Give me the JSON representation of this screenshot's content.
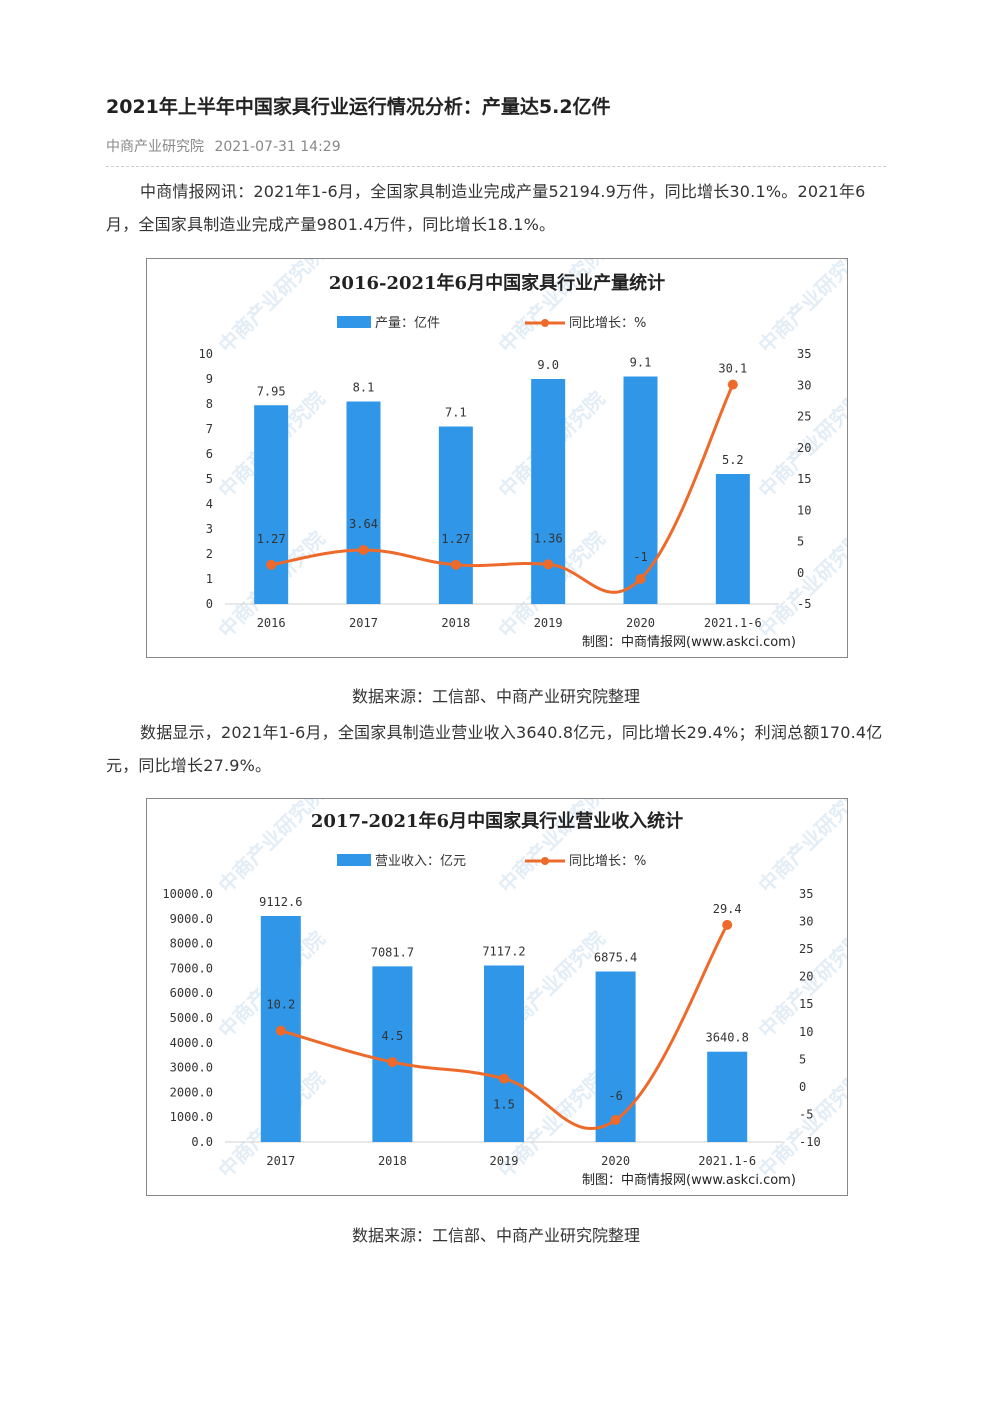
{
  "article": {
    "title": "2021年上半年中国家具行业运行情况分析：产量达5.2亿件",
    "source": "中商产业研究院",
    "datetime": "2021-07-31 14:29",
    "para1": "中商情报网讯：2021年1-6月，全国家具制造业完成产量52194.9万件，同比增长30.1%。2021年6月，全国家具制造业完成产量9801.4万件，同比增长18.1%。",
    "caption1": "数据来源：工信部、中商产业研究院整理",
    "para2": "数据显示，2021年1-6月，全国家具制造业营业收入3640.8亿元，同比增长29.4%；利润总额170.4亿元，同比增长27.9%。",
    "caption2": "数据来源：工信部、中商产业研究院整理"
  },
  "chart_data": [
    {
      "type": "bar",
      "title": "2016-2021年6月中国家具行业产量统计",
      "categories": [
        "2016",
        "2017",
        "2018",
        "2019",
        "2020",
        "2021.1-6"
      ],
      "series": [
        {
          "name": "产量：亿件",
          "kind": "bar",
          "axis": "left",
          "values": [
            7.95,
            8.1,
            7.1,
            9.0,
            9.1,
            5.2
          ],
          "labels": [
            "7.95",
            "8.1",
            "7.1",
            "9.0",
            "9.1",
            "5.2"
          ]
        },
        {
          "name": "同比增长：%",
          "kind": "line",
          "axis": "right",
          "values": [
            1.27,
            3.64,
            1.27,
            1.36,
            -1,
            30.1
          ],
          "labels": [
            "1.27",
            "3.64",
            "1.27",
            "1.36",
            "-1",
            "30.1"
          ]
        }
      ],
      "yticks_left": [
        "0",
        "1",
        "2",
        "3",
        "4",
        "5",
        "6",
        "7",
        "8",
        "9",
        "10"
      ],
      "yticks_right": [
        "-5",
        "0",
        "5",
        "10",
        "15",
        "20",
        "25",
        "30",
        "35"
      ],
      "ylim_left": [
        0,
        10
      ],
      "ylim_right": [
        -5,
        35
      ],
      "legend_position": "top-center",
      "credit": "制图：中商情报网(www.askci.com)",
      "watermark": "中商产业研究院",
      "colors": {
        "bar": "#2f96e8",
        "line": "#ee6a2b"
      }
    },
    {
      "type": "bar",
      "title": "2017-2021年6月中国家具行业营业收入统计",
      "categories": [
        "2017",
        "2018",
        "2019",
        "2020",
        "2021.1-6"
      ],
      "series": [
        {
          "name": "营业收入：亿元",
          "kind": "bar",
          "axis": "left",
          "values": [
            9112.6,
            7081.7,
            7117.2,
            6875.4,
            3640.8
          ],
          "labels": [
            "9112.6",
            "7081.7",
            "7117.2",
            "6875.4",
            "3640.8"
          ]
        },
        {
          "name": "同比增长：%",
          "kind": "line",
          "axis": "right",
          "values": [
            10.2,
            4.5,
            1.5,
            -6,
            29.4
          ],
          "labels": [
            "10.2",
            "4.5",
            "1.5",
            "-6",
            "29.4"
          ]
        }
      ],
      "yticks_left": [
        "0.0",
        "1000.0",
        "2000.0",
        "3000.0",
        "4000.0",
        "5000.0",
        "6000.0",
        "7000.0",
        "8000.0",
        "9000.0",
        "10000.0"
      ],
      "yticks_right": [
        "-10",
        "-5",
        "0",
        "5",
        "10",
        "15",
        "20",
        "25",
        "30",
        "35"
      ],
      "ylim_left": [
        0,
        10000
      ],
      "ylim_right": [
        -10,
        35
      ],
      "legend_position": "top-center",
      "credit": "制图：中商情报网(www.askci.com)",
      "watermark": "中商产业研究院",
      "colors": {
        "bar": "#2f96e8",
        "line": "#ee6a2b"
      }
    }
  ]
}
